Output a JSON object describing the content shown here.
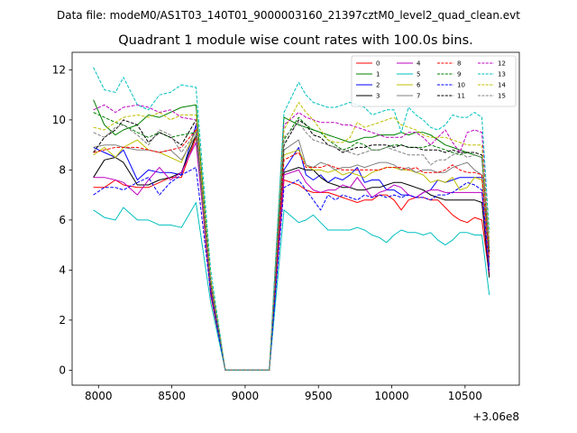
{
  "chart_data": {
    "type": "line",
    "suptitle": "Data file: modeM0/AS1T03_140T01_9000003160_21397cztM0_level2_quad_clean.evt",
    "title": "Quadrant 1 module wise count rates with 100.0s bins.",
    "xlabel": "",
    "ylabel": "",
    "x_offset_label": "+3.06e8",
    "xlim": [
      7820,
      10870
    ],
    "ylim": [
      -0.6,
      12.7
    ],
    "x_ticks": [
      8000,
      8500,
      9000,
      9500,
      10000,
      10500
    ],
    "x_tick_labels": [
      "8000",
      "8500",
      "9000",
      "9500",
      "10000",
      "10500"
    ],
    "y_ticks": [
      0,
      2,
      4,
      6,
      8,
      10,
      12
    ],
    "y_tick_labels": [
      "0",
      "2",
      "4",
      "6",
      "8",
      "10",
      "12"
    ],
    "legend_position": "top-right",
    "x": [
      7965,
      8040,
      8115,
      8170,
      8265,
      8340,
      8415,
      8490,
      8565,
      8665,
      8765,
      8865,
      8965,
      9065,
      9165,
      9265,
      9365,
      9415,
      9465,
      9515,
      9565,
      9615,
      9665,
      9715,
      9765,
      9815,
      9865,
      9915,
      9965,
      10015,
      10065,
      10115,
      10165,
      10215,
      10265,
      10315,
      10365,
      10415,
      10465,
      10515,
      10565,
      10615,
      10665
    ],
    "series": [
      {
        "name": "0",
        "color": "#ff0000",
        "dash": "solid",
        "values": [
          7.3,
          7.3,
          7.6,
          7.4,
          7.3,
          7.3,
          7.5,
          7.7,
          7.7,
          9.3,
          3.0,
          0,
          0,
          0,
          0,
          7.6,
          7.4,
          7.2,
          7.1,
          7.1,
          7.1,
          7.0,
          6.9,
          6.8,
          6.7,
          6.8,
          6.8,
          7.0,
          7.0,
          6.8,
          6.4,
          6.8,
          6.9,
          6.9,
          6.8,
          6.8,
          6.5,
          6.2,
          6.0,
          5.9,
          6.1,
          6.0,
          3.8
        ]
      },
      {
        "name": "1",
        "color": "#008000",
        "dash": "solid",
        "values": [
          10.8,
          9.8,
          9.4,
          9.6,
          9.8,
          10.2,
          10.1,
          10.3,
          10.5,
          10.6,
          3.6,
          0,
          0,
          0,
          0,
          10.1,
          9.8,
          9.7,
          9.6,
          9.5,
          9.4,
          9.3,
          9.2,
          9.1,
          9.2,
          9.3,
          9.3,
          9.4,
          9.4,
          9.4,
          9.5,
          9.4,
          9.5,
          9.5,
          9.4,
          9.2,
          9.0,
          8.9,
          8.8,
          8.7,
          8.6,
          8.5,
          4.8
        ]
      },
      {
        "name": "2",
        "color": "#0000ff",
        "dash": "solid",
        "values": [
          8.9,
          8.7,
          8.5,
          8.8,
          7.6,
          8.0,
          7.9,
          7.9,
          7.8,
          9.8,
          3.2,
          0,
          0,
          0,
          0,
          8.0,
          8.9,
          7.8,
          7.6,
          7.8,
          7.5,
          7.7,
          7.6,
          7.8,
          8.1,
          7.5,
          7.6,
          7.6,
          7.2,
          7.2,
          7.0,
          7.0,
          6.9,
          7.1,
          7.2,
          7.6,
          7.5,
          7.6,
          7.7,
          7.7,
          7.7,
          7.7,
          4.2
        ]
      },
      {
        "name": "3",
        "color": "#000000",
        "dash": "solid",
        "values": [
          7.7,
          8.4,
          8.5,
          8.3,
          7.4,
          7.4,
          7.6,
          7.7,
          7.9,
          9.4,
          3.4,
          0,
          0,
          0,
          0,
          7.9,
          8.1,
          8.0,
          8.0,
          7.7,
          7.5,
          7.4,
          7.3,
          7.3,
          7.2,
          7.2,
          7.3,
          7.3,
          7.4,
          7.5,
          7.5,
          7.4,
          7.3,
          7.2,
          7.0,
          6.9,
          6.8,
          6.8,
          6.8,
          6.8,
          6.8,
          6.7,
          3.7
        ]
      },
      {
        "name": "4",
        "color": "#bf00bf",
        "dash": "solid",
        "values": [
          7.7,
          7.7,
          7.6,
          7.5,
          7.0,
          7.6,
          8.1,
          7.6,
          7.9,
          9.1,
          3.3,
          0,
          0,
          0,
          0,
          7.8,
          8.0,
          7.5,
          7.2,
          7.1,
          7.2,
          7.2,
          7.4,
          7.3,
          7.7,
          7.3,
          6.9,
          7.1,
          7.2,
          7.4,
          7.3,
          7.0,
          6.9,
          7.1,
          7.2,
          7.2,
          7.1,
          7.1,
          7.1,
          7.1,
          7.1,
          7.1,
          3.9
        ]
      },
      {
        "name": "5",
        "color": "#00bfbf",
        "dash": "solid",
        "values": [
          6.4,
          6.1,
          6.0,
          6.5,
          6.0,
          6.0,
          5.8,
          5.8,
          5.7,
          6.7,
          2.7,
          0,
          0,
          0,
          0,
          6.4,
          5.9,
          6.0,
          6.2,
          5.9,
          5.6,
          5.6,
          5.6,
          5.6,
          5.7,
          5.6,
          5.4,
          5.3,
          5.1,
          5.4,
          5.6,
          5.5,
          5.5,
          5.4,
          5.5,
          5.2,
          5.0,
          5.2,
          5.5,
          5.5,
          5.4,
          5.4,
          3.0
        ]
      },
      {
        "name": "6",
        "color": "#bfbf00",
        "dash": "solid",
        "values": [
          8.6,
          8.9,
          8.5,
          8.9,
          9.2,
          8.8,
          8.7,
          8.5,
          8.3,
          9.6,
          3.4,
          0,
          0,
          0,
          0,
          8.6,
          8.8,
          8.2,
          8.0,
          8.0,
          7.9,
          8.0,
          7.8,
          7.9,
          7.8,
          7.7,
          7.9,
          8.0,
          8.1,
          8.1,
          8.0,
          8.0,
          7.9,
          7.8,
          7.5,
          7.6,
          7.5,
          7.7,
          7.2,
          7.3,
          7.7,
          7.6,
          4.3
        ]
      },
      {
        "name": "7",
        "color": "#808080",
        "dash": "solid",
        "values": [
          8.9,
          9.0,
          9.0,
          8.9,
          8.8,
          8.8,
          8.7,
          8.8,
          8.4,
          9.4,
          3.5,
          0,
          0,
          0,
          0,
          8.8,
          9.2,
          8.2,
          8.1,
          8.3,
          8.2,
          8.0,
          8.1,
          8.1,
          8.2,
          8.1,
          8.2,
          8.3,
          8.3,
          8.2,
          8.0,
          8.1,
          7.9,
          8.0,
          8.0,
          7.9,
          7.9,
          8.1,
          8.2,
          8.3,
          8.0,
          7.8,
          4.4
        ]
      },
      {
        "name": "8",
        "color": "#ff0000",
        "dash": "dashed",
        "values": [
          8.7,
          8.8,
          8.9,
          8.9,
          8.9,
          8.8,
          8.7,
          8.8,
          8.9,
          9.6,
          3.4,
          0,
          0,
          0,
          0,
          8.4,
          8.7,
          8.1,
          8.1,
          8.1,
          8.2,
          8.1,
          8.0,
          8.0,
          8.0,
          8.0,
          8.0,
          8.0,
          8.1,
          8.1,
          8.1,
          8.0,
          8.1,
          7.9,
          7.9,
          7.9,
          8.0,
          8.2,
          8.0,
          7.9,
          7.9,
          7.8,
          4.5
        ]
      },
      {
        "name": "9",
        "color": "#008000",
        "dash": "dashed",
        "values": [
          10.3,
          10.1,
          9.9,
          9.8,
          9.5,
          9.3,
          9.5,
          9.3,
          9.4,
          9.5,
          3.5,
          0,
          0,
          0,
          0,
          9.2,
          10.1,
          9.8,
          9.6,
          9.5,
          9.2,
          9.0,
          8.8,
          8.9,
          9.1,
          9.0,
          8.8,
          8.8,
          8.9,
          9.0,
          9.0,
          8.9,
          8.9,
          8.9,
          9.0,
          8.9,
          8.8,
          8.7,
          8.6,
          8.7,
          8.6,
          8.5,
          4.9
        ]
      },
      {
        "name": "10",
        "color": "#0000ff",
        "dash": "dashed",
        "values": [
          7.0,
          7.3,
          7.3,
          7.2,
          7.5,
          7.7,
          7.0,
          7.5,
          7.8,
          8.1,
          3.1,
          0,
          0,
          0,
          0,
          7.3,
          7.6,
          7.2,
          6.8,
          6.4,
          7.0,
          6.8,
          7.0,
          6.9,
          6.8,
          7.0,
          6.9,
          7.0,
          6.9,
          7.0,
          6.9,
          7.0,
          6.9,
          6.9,
          6.8,
          7.0,
          7.0,
          7.1,
          7.3,
          7.5,
          7.4,
          7.2,
          4.0
        ]
      },
      {
        "name": "11",
        "color": "#000000",
        "dash": "dashed",
        "values": [
          8.7,
          9.3,
          9.6,
          10.0,
          9.8,
          9.1,
          9.5,
          9.3,
          9.0,
          10.0,
          3.5,
          0,
          0,
          0,
          0,
          9.0,
          10.0,
          9.8,
          9.4,
          9.3,
          9.0,
          8.9,
          8.7,
          8.8,
          8.9,
          8.9,
          9.0,
          9.0,
          9.0,
          8.9,
          9.0,
          8.9,
          8.9,
          8.8,
          8.8,
          8.8,
          8.7,
          8.8,
          8.7,
          8.7,
          8.7,
          8.6,
          4.7
        ]
      },
      {
        "name": "12",
        "color": "#bf00bf",
        "dash": "dashed",
        "values": [
          10.4,
          10.6,
          10.3,
          10.5,
          10.6,
          10.5,
          10.3,
          10.4,
          10.1,
          10.0,
          3.7,
          0,
          0,
          0,
          0,
          9.8,
          10.3,
          10.1,
          10.0,
          9.9,
          9.9,
          9.9,
          9.8,
          9.8,
          9.7,
          9.6,
          9.5,
          9.4,
          9.3,
          9.3,
          9.3,
          9.5,
          9.5,
          9.3,
          9.0,
          9.3,
          9.6,
          9.1,
          8.7,
          9.5,
          9.6,
          9.5,
          5.1
        ]
      },
      {
        "name": "13",
        "color": "#00bfbf",
        "dash": "dashed",
        "values": [
          12.1,
          11.2,
          11.1,
          11.7,
          10.6,
          10.4,
          11.0,
          11.1,
          11.4,
          11.3,
          4.0,
          0,
          0,
          0,
          0,
          10.3,
          11.5,
          11.0,
          10.7,
          10.6,
          10.5,
          10.5,
          10.6,
          10.7,
          10.6,
          10.5,
          10.2,
          10.3,
          10.4,
          10.4,
          9.5,
          10.5,
          10.2,
          10.0,
          9.7,
          9.6,
          9.8,
          10.2,
          10.1,
          10.1,
          10.3,
          10.1,
          5.5
        ]
      },
      {
        "name": "14",
        "color": "#bfbf00",
        "dash": "dashed",
        "values": [
          9.7,
          9.6,
          9.9,
          10.1,
          10.2,
          10.1,
          10.3,
          10.0,
          10.2,
          10.2,
          3.7,
          0,
          0,
          0,
          0,
          9.6,
          10.7,
          10.3,
          10.0,
          9.6,
          9.2,
          9.1,
          9.1,
          9.3,
          9.9,
          9.7,
          9.8,
          9.9,
          10.0,
          10.1,
          9.8,
          9.7,
          9.6,
          9.4,
          9.3,
          9.3,
          9.3,
          9.2,
          9.1,
          9.0,
          9.0,
          9.0,
          5.1
        ]
      },
      {
        "name": "15",
        "color": "#808080",
        "dash": "dashed",
        "values": [
          9.5,
          9.3,
          9.7,
          9.8,
          9.4,
          9.0,
          9.6,
          9.4,
          8.7,
          9.5,
          3.5,
          0,
          0,
          0,
          0,
          9.3,
          9.9,
          9.5,
          9.2,
          9.1,
          9.0,
          8.9,
          8.8,
          8.7,
          8.6,
          8.7,
          8.8,
          8.8,
          8.9,
          8.8,
          8.7,
          8.6,
          8.6,
          8.6,
          8.2,
          8.4,
          8.4,
          8.6,
          8.7,
          8.5,
          8.6,
          8.5,
          4.8
        ]
      }
    ]
  }
}
